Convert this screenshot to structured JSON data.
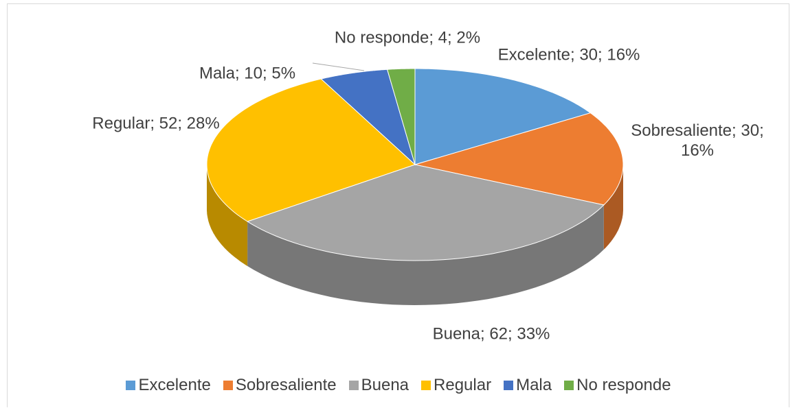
{
  "chart_data": {
    "type": "pie",
    "categories": [
      "Excelente",
      "Sobresaliente",
      "Buena",
      "Regular",
      "Mala",
      "No responde"
    ],
    "values": [
      30,
      30,
      62,
      52,
      10,
      4
    ],
    "value_labels": [
      "Excelente; 30; 16%",
      "Sobresaliente; 30; 16%",
      "Buena; 62; 33%",
      "Regular; 52; 28%",
      "Mala; 10; 5%",
      "No responde; 4; 2%"
    ],
    "colors": [
      "#5b9bd5",
      "#ed7d31",
      "#a5a5a5",
      "#ffc000",
      "#4472c4",
      "#70ad47"
    ],
    "legend": "bottom"
  }
}
